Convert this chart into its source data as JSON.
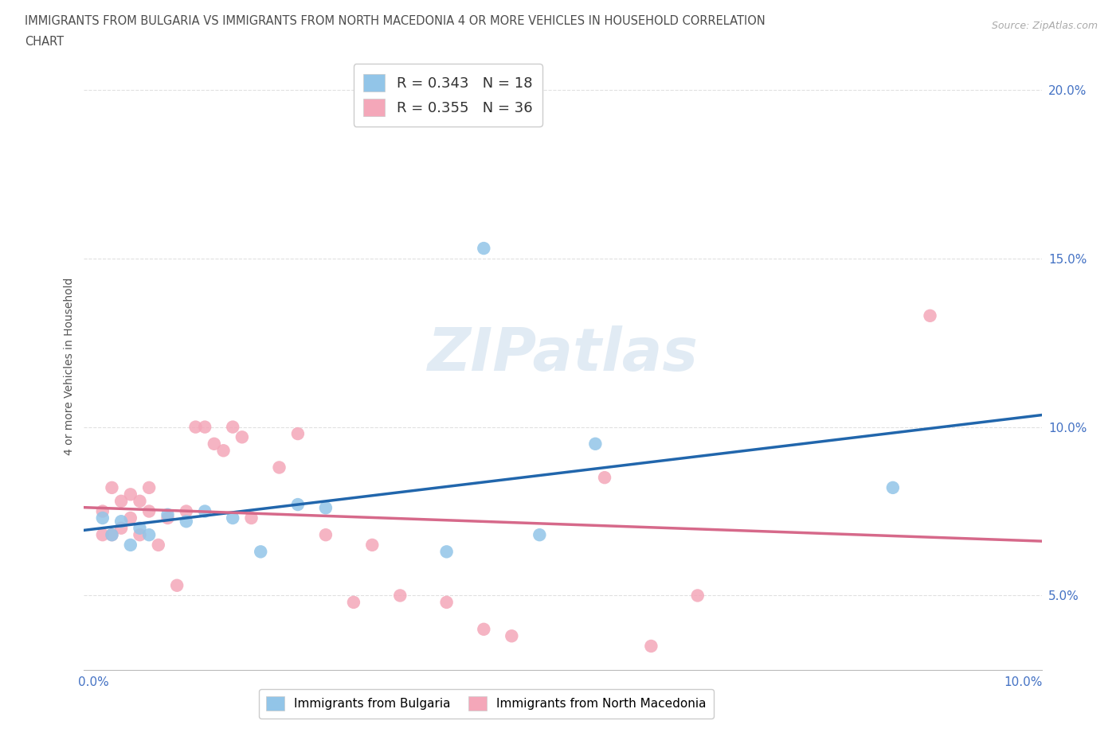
{
  "title_line1": "IMMIGRANTS FROM BULGARIA VS IMMIGRANTS FROM NORTH MACEDONIA 4 OR MORE VEHICLES IN HOUSEHOLD CORRELATION",
  "title_line2": "CHART",
  "source": "Source: ZipAtlas.com",
  "ylabel": "4 or more Vehicles in Household",
  "xlim": [
    -0.001,
    0.102
  ],
  "ylim": [
    0.028,
    0.208
  ],
  "background_color": "#ffffff",
  "grid_color": "#e0e0e0",
  "title_color": "#4d4d4d",
  "axis_label_color": "#4472C4",
  "bulgaria_scatter_color": "#92C5E8",
  "macedonia_scatter_color": "#F4A7B9",
  "bulgaria_line_color": "#2166AC",
  "macedonia_line_color": "#D6698A",
  "R_bulgaria": 0.343,
  "N_bulgaria": 18,
  "R_macedonia": 0.355,
  "N_macedonia": 36,
  "legend_label_bulgaria": "Immigrants from Bulgaria",
  "legend_label_macedonia": "Immigrants from North Macedonia",
  "watermark_text": "ZIPatlas",
  "bulgaria_x": [
    0.001,
    0.002,
    0.003,
    0.004,
    0.005,
    0.006,
    0.008,
    0.01,
    0.012,
    0.015,
    0.018,
    0.022,
    0.025,
    0.038,
    0.042,
    0.048,
    0.054,
    0.086
  ],
  "bulgaria_y": [
    0.073,
    0.068,
    0.072,
    0.065,
    0.07,
    0.068,
    0.074,
    0.072,
    0.075,
    0.073,
    0.063,
    0.077,
    0.076,
    0.063,
    0.153,
    0.068,
    0.095,
    0.082
  ],
  "macedonia_x": [
    0.001,
    0.001,
    0.002,
    0.002,
    0.003,
    0.003,
    0.004,
    0.004,
    0.005,
    0.005,
    0.006,
    0.006,
    0.007,
    0.008,
    0.009,
    0.01,
    0.011,
    0.012,
    0.013,
    0.014,
    0.015,
    0.016,
    0.017,
    0.02,
    0.022,
    0.025,
    0.028,
    0.03,
    0.033,
    0.038,
    0.042,
    0.045,
    0.055,
    0.06,
    0.065,
    0.09
  ],
  "macedonia_y": [
    0.068,
    0.075,
    0.068,
    0.082,
    0.078,
    0.07,
    0.073,
    0.08,
    0.068,
    0.078,
    0.075,
    0.082,
    0.065,
    0.073,
    0.053,
    0.075,
    0.1,
    0.1,
    0.095,
    0.093,
    0.1,
    0.097,
    0.073,
    0.088,
    0.098,
    0.068,
    0.048,
    0.065,
    0.05,
    0.048,
    0.04,
    0.038,
    0.085,
    0.035,
    0.05,
    0.133
  ]
}
